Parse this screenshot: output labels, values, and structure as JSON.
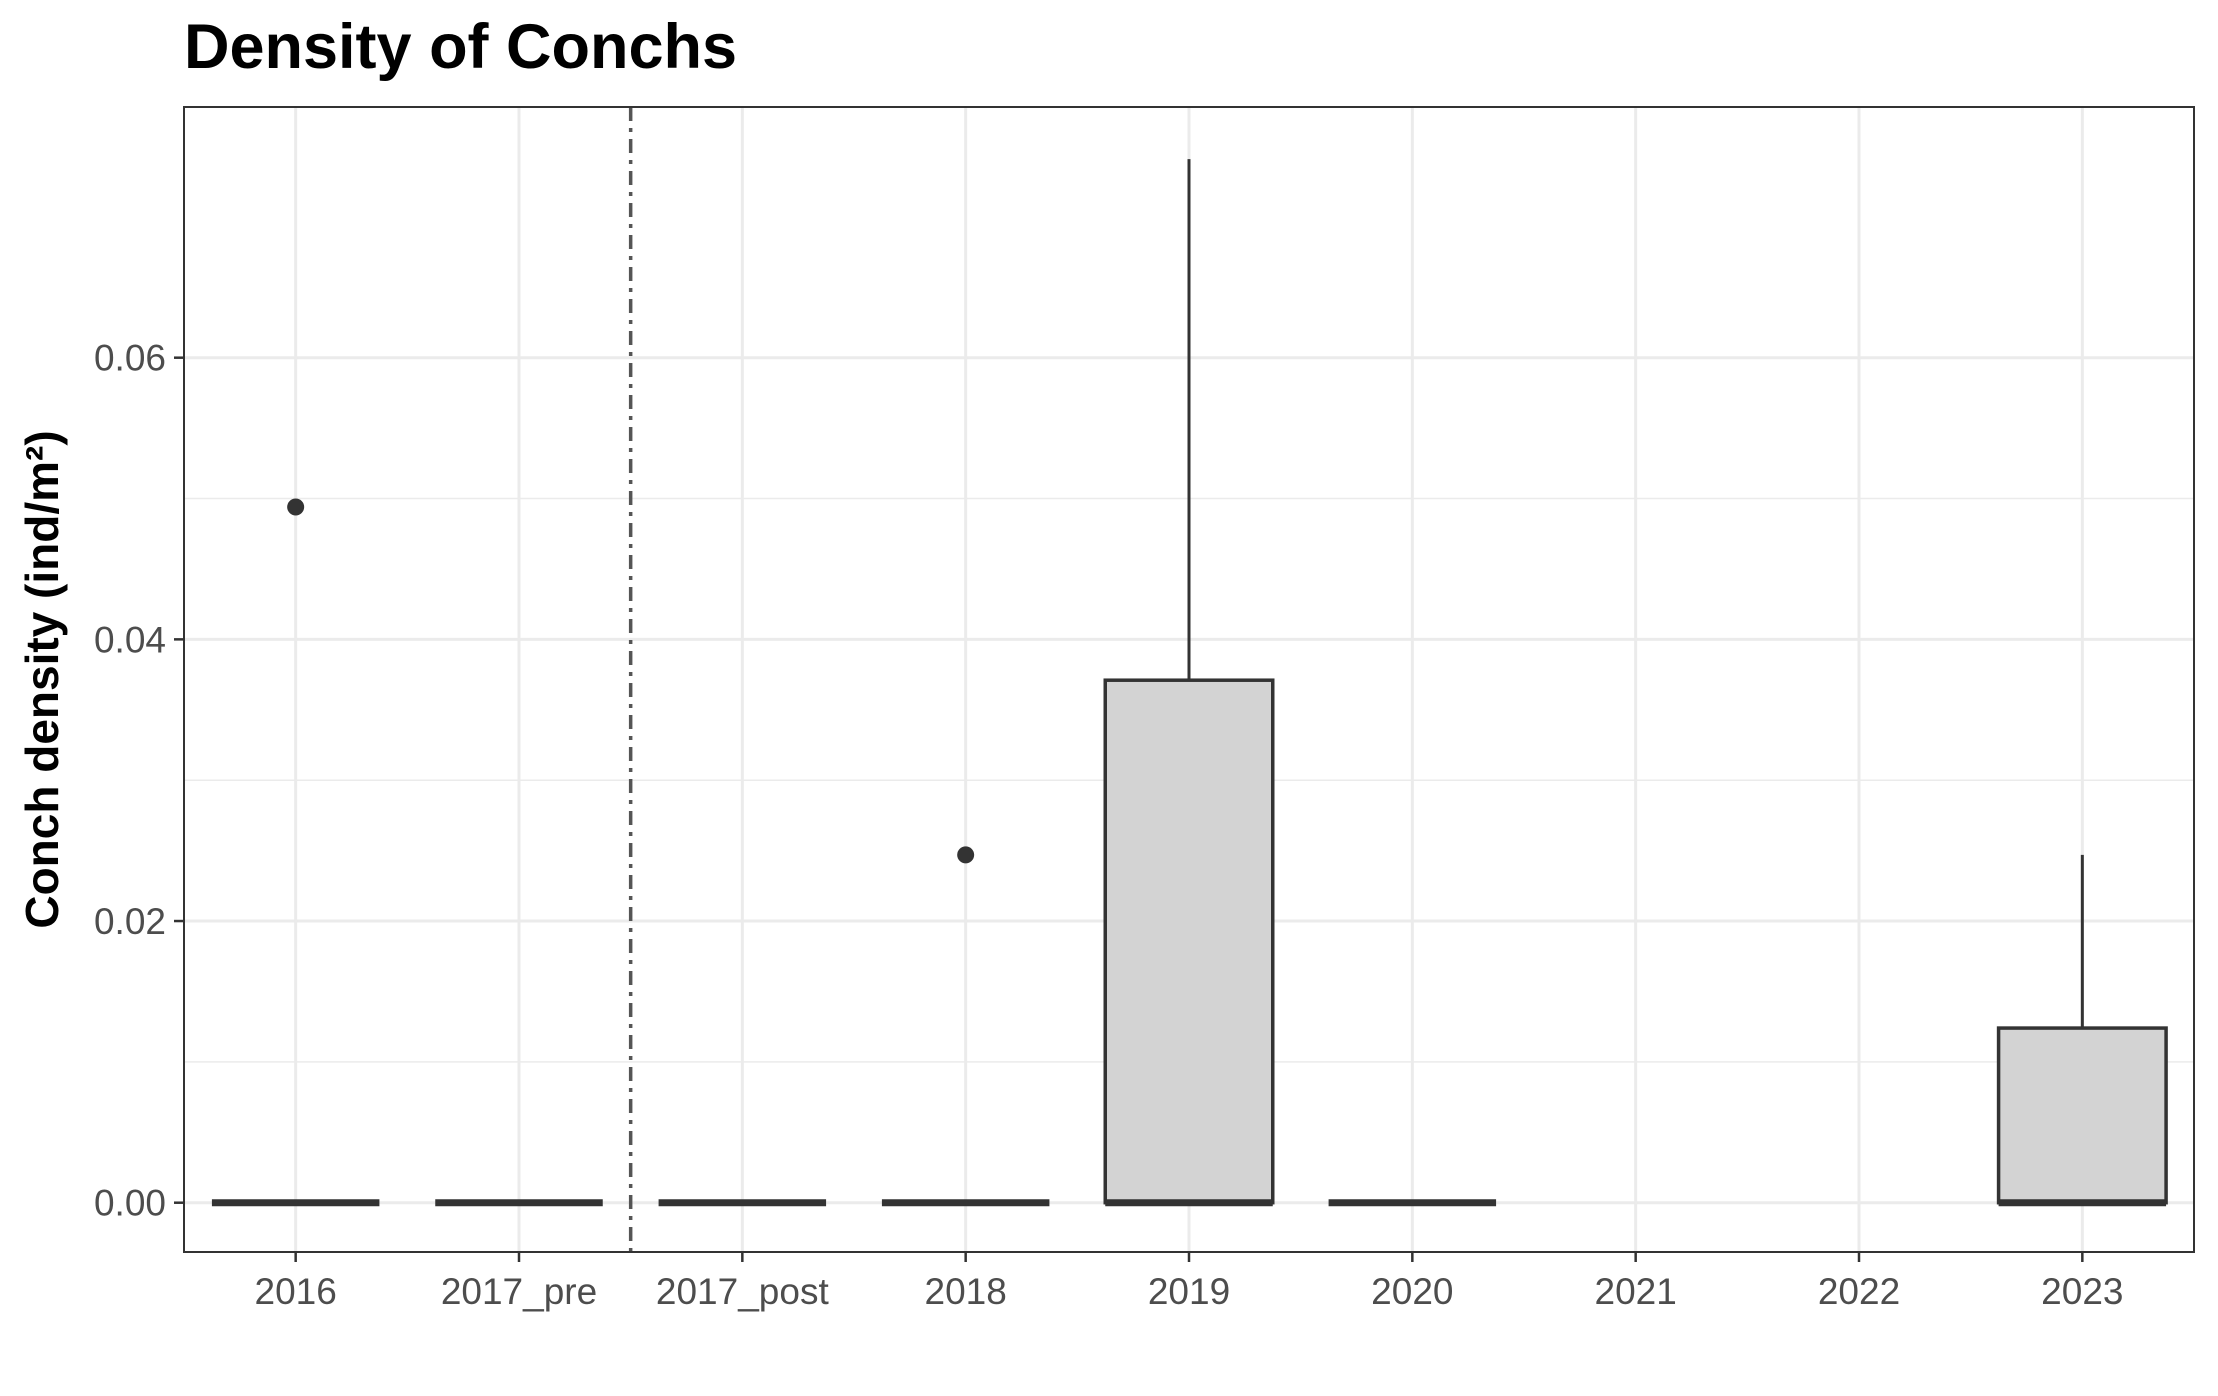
{
  "chart_data": {
    "type": "boxplot",
    "title": "Density of Conchs",
    "xlabel": "",
    "ylabel": "Conch density (ind/m²)",
    "categories": [
      "2016",
      "2017_pre",
      "2017_post",
      "2018",
      "2019",
      "2020",
      "2021",
      "2022",
      "2023"
    ],
    "ylim": [
      -0.0035,
      0.0778
    ],
    "yticks": [
      0.0,
      0.02,
      0.04,
      0.06
    ],
    "ytick_labels": [
      "0.00",
      "0.02",
      "0.04",
      "0.06"
    ],
    "grid": true,
    "legend": "none",
    "boxes": [
      {
        "category": "2016",
        "min": 0,
        "q1": 0,
        "median": 0,
        "q3": 0,
        "max": 0,
        "outliers": [
          0.0494
        ]
      },
      {
        "category": "2017_pre",
        "min": 0,
        "q1": 0,
        "median": 0,
        "q3": 0,
        "max": 0,
        "outliers": []
      },
      {
        "category": "2017_post",
        "min": 0,
        "q1": 0,
        "median": 0,
        "q3": 0,
        "max": 0,
        "outliers": []
      },
      {
        "category": "2018",
        "min": 0,
        "q1": 0,
        "median": 0,
        "q3": 0,
        "max": 0,
        "outliers": [
          0.0247
        ]
      },
      {
        "category": "2019",
        "min": 0,
        "q1": 0,
        "median": 0,
        "q3": 0.0371,
        "max": 0.0741,
        "outliers": []
      },
      {
        "category": "2020",
        "min": 0,
        "q1": 0,
        "median": 0,
        "q3": 0,
        "max": 0,
        "outliers": []
      },
      {
        "category": "2023",
        "min": 0,
        "q1": 0,
        "median": 0,
        "q3": 0.0124,
        "max": 0.0247,
        "outliers": []
      }
    ],
    "reference_line": {
      "between": [
        "2017_pre",
        "2017_post"
      ],
      "style": "dashed"
    },
    "colors": {
      "box_fill": "#d3d3d3",
      "box_stroke": "#333333",
      "grid": "#ebebeb",
      "panel_border": "#333333",
      "reference_line": "#555555"
    }
  }
}
